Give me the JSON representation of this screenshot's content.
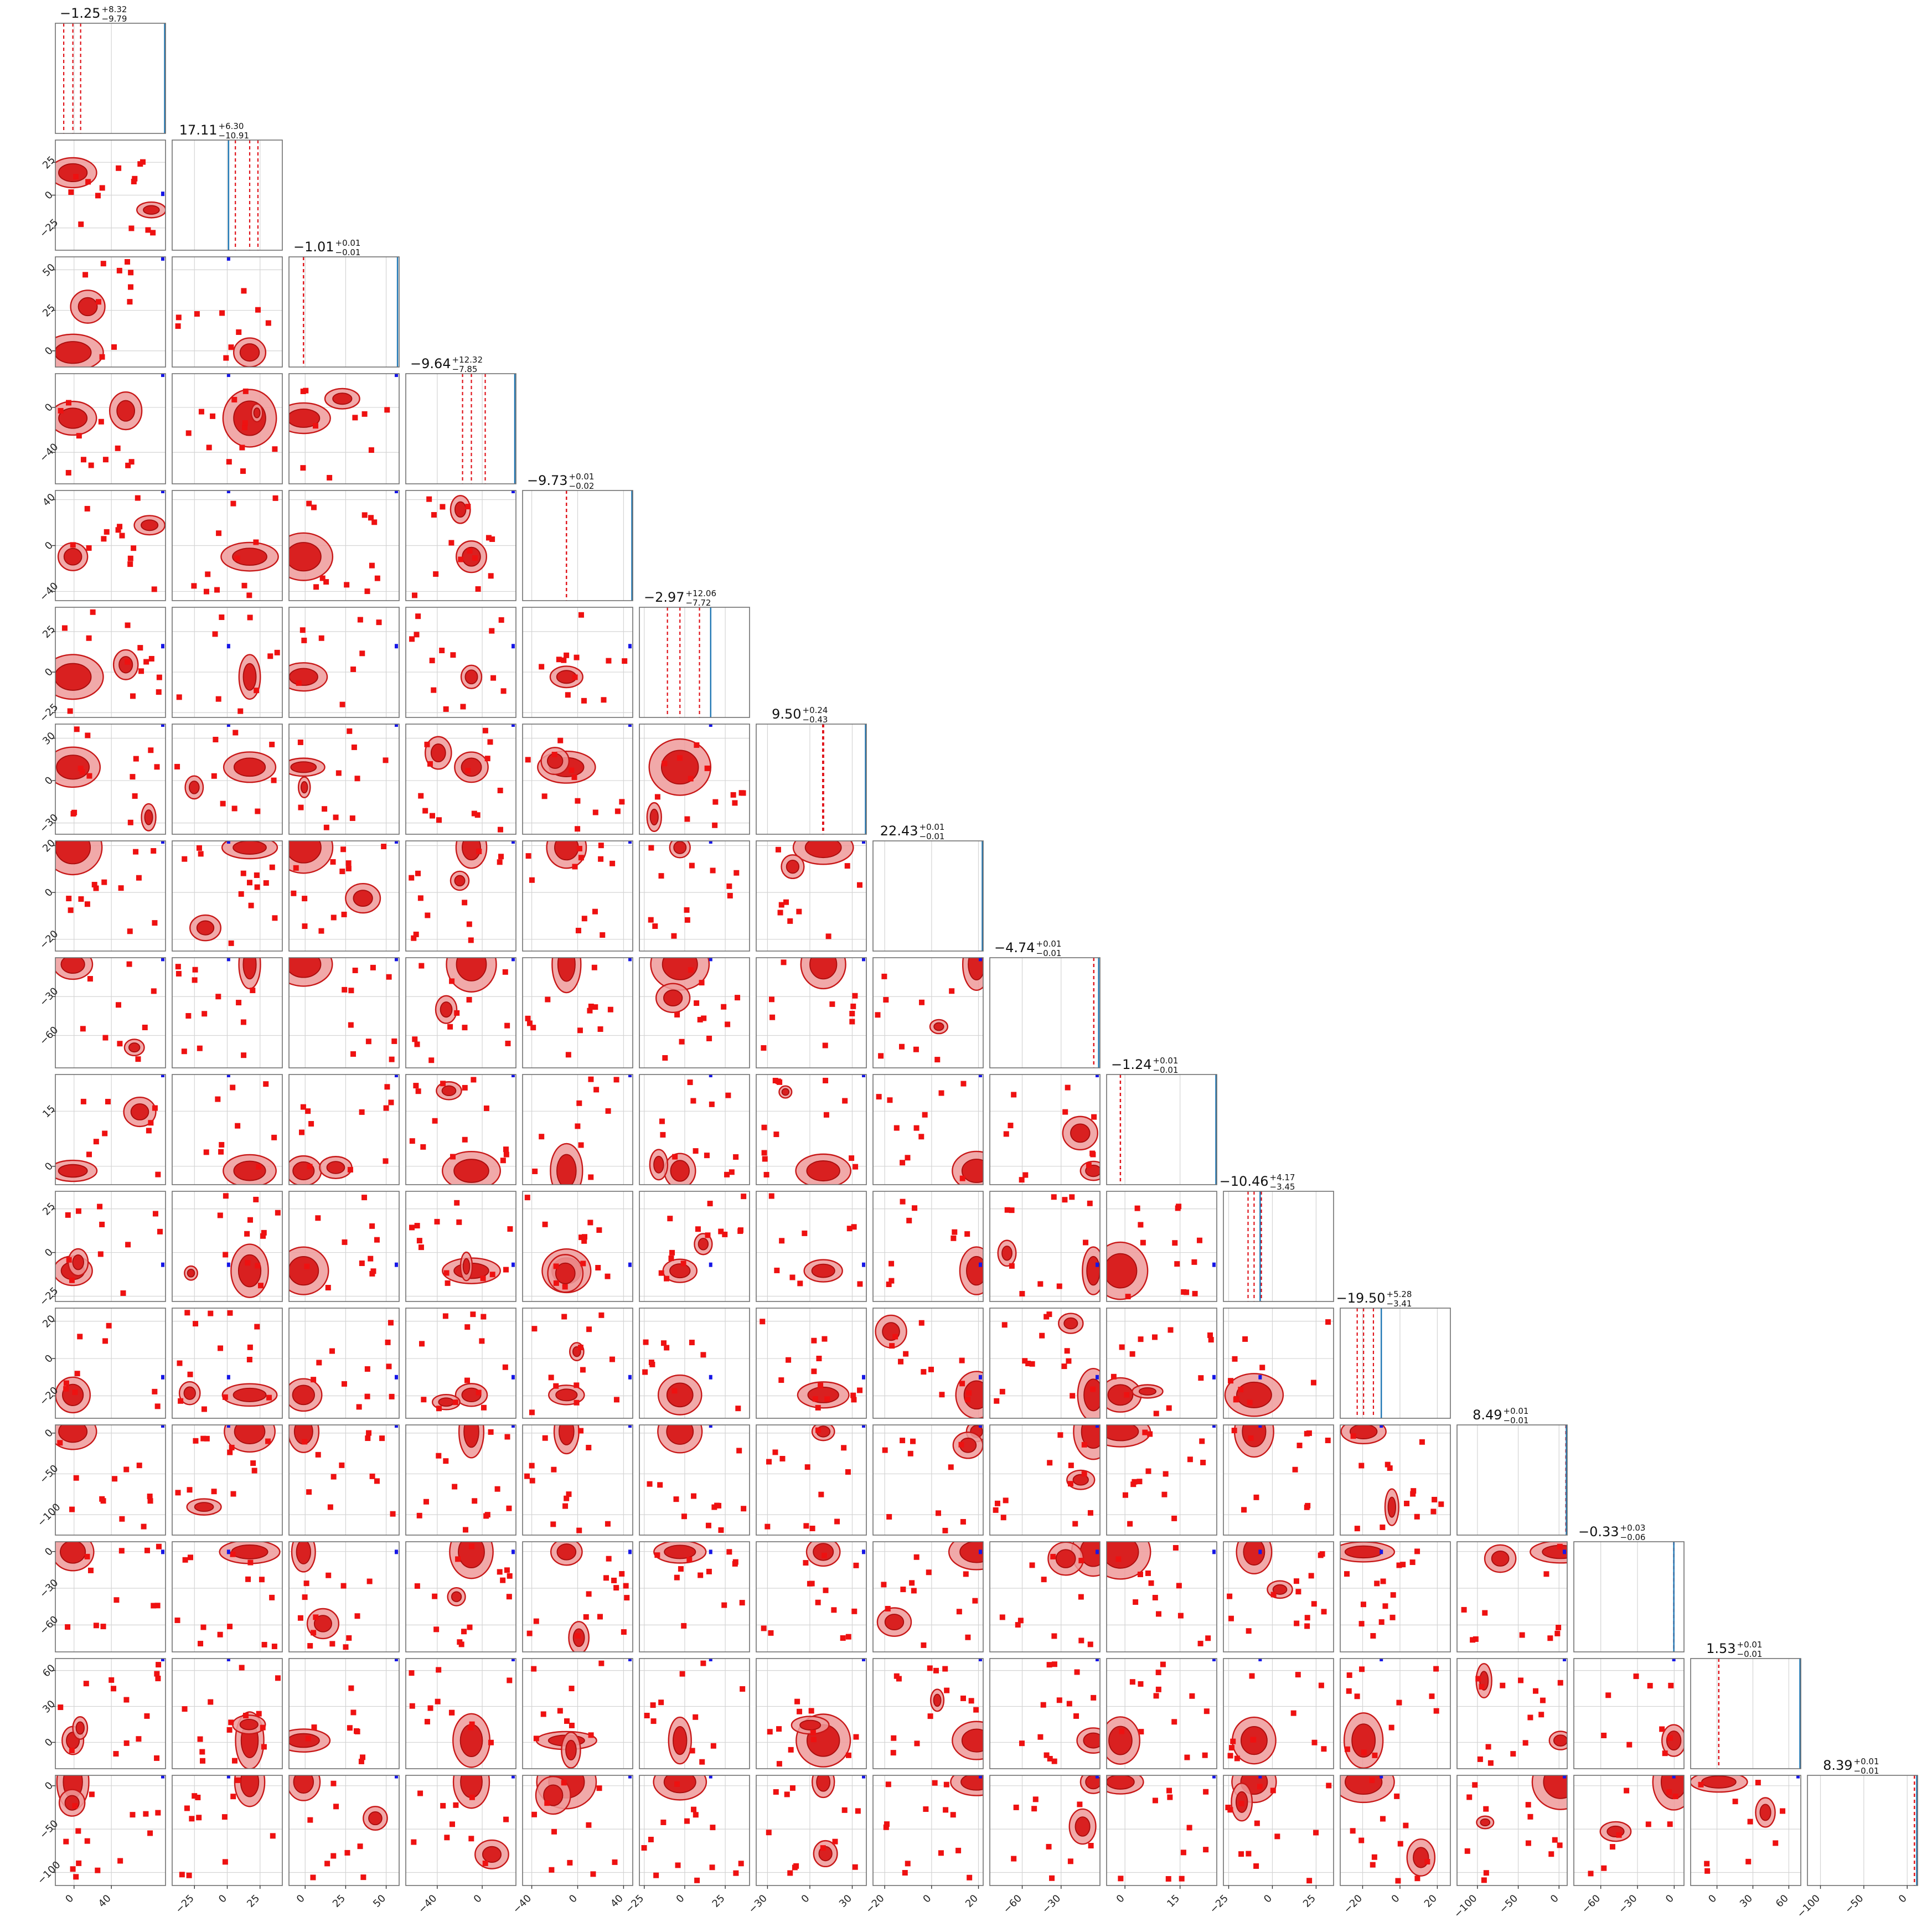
{
  "chart_data": {
    "type": "corner",
    "n_params": 16,
    "colors": {
      "samples": "#ee1111",
      "contour_fill": "#ef9a9a",
      "contour_core": "#d92020",
      "quantile": "#e0141b",
      "truth_line": "#1f77b4",
      "truth_point": "#1717e6"
    },
    "grid": true,
    "params": [
      {
        "index": 0,
        "range": [
          -20,
          98
        ],
        "ticks": [
          0,
          40
        ],
        "tick_labels": [
          "0",
          "40"
        ],
        "median": -1.25,
        "title": {
          "value": "−1.25",
          "plus": "+8.32",
          "minus": "−9.79"
        }
      },
      {
        "index": 1,
        "range": [
          -42,
          42
        ],
        "ticks": [
          -25,
          0,
          25
        ],
        "tick_labels": [
          "−25",
          "0",
          "25"
        ],
        "median": 17.11,
        "title": {
          "value": "17.11",
          "plus": "+6.30",
          "minus": "−10.91"
        }
      },
      {
        "index": 2,
        "range": [
          -10,
          58
        ],
        "ticks": [
          0,
          25,
          50
        ],
        "tick_labels": [
          "0",
          "25",
          "50"
        ],
        "median": -1.01,
        "title": {
          "value": "−1.01",
          "plus": "+0.01",
          "minus": "−0.01"
        }
      },
      {
        "index": 3,
        "range": [
          -68,
          30
        ],
        "ticks": [
          -40,
          0
        ],
        "tick_labels": [
          "−40",
          "0"
        ],
        "median": -9.64,
        "title": {
          "value": "−9.64",
          "plus": "+12.32",
          "minus": "−7.85"
        }
      },
      {
        "index": 4,
        "range": [
          -48,
          48
        ],
        "ticks": [
          -40,
          0,
          40
        ],
        "tick_labels": [
          "−40",
          "0",
          "40"
        ],
        "median": -9.73,
        "title": {
          "value": "−9.73",
          "plus": "+0.01",
          "minus": "−0.02"
        }
      },
      {
        "index": 5,
        "range": [
          -28,
          40
        ],
        "ticks": [
          -25,
          0,
          25
        ],
        "tick_labels": [
          "−25",
          "0",
          "25"
        ],
        "median": -2.97,
        "title": {
          "value": "−2.97",
          "plus": "+12.06",
          "minus": "−7.72"
        }
      },
      {
        "index": 6,
        "range": [
          -38,
          40
        ],
        "ticks": [
          -30,
          0,
          30
        ],
        "tick_labels": [
          "−30",
          "0",
          "30"
        ],
        "median": 9.5,
        "title": {
          "value": "9.50",
          "plus": "+0.24",
          "minus": "−0.43"
        }
      },
      {
        "index": 7,
        "range": [
          -25,
          22
        ],
        "ticks": [
          -20,
          0,
          20
        ],
        "tick_labels": [
          "−20",
          "0",
          "20"
        ],
        "median": 22.43,
        "title": {
          "value": "22.43",
          "plus": "+0.01",
          "minus": "−0.01"
        }
      },
      {
        "index": 8,
        "range": [
          -85,
          0
        ],
        "ticks": [
          -60,
          -30
        ],
        "tick_labels": [
          "−60",
          "−30"
        ],
        "median": -4.74,
        "title": {
          "value": "−4.74",
          "plus": "+0.01",
          "minus": "−0.01"
        }
      },
      {
        "index": 9,
        "range": [
          -5,
          25
        ],
        "ticks": [
          0,
          15
        ],
        "tick_labels": [
          "0",
          "15"
        ],
        "median": -1.24,
        "title": {
          "value": "−1.24",
          "plus": "+0.01",
          "minus": "−0.01"
        }
      },
      {
        "index": 10,
        "range": [
          -28,
          35
        ],
        "ticks": [
          -25,
          0,
          25
        ],
        "tick_labels": [
          "−25",
          "0",
          "25"
        ],
        "median": -10.46,
        "title": {
          "value": "−10.46",
          "plus": "+4.17",
          "minus": "−3.45"
        }
      },
      {
        "index": 11,
        "range": [
          -32,
          27
        ],
        "ticks": [
          -20,
          0,
          20
        ],
        "tick_labels": [
          "−20",
          "0",
          "20"
        ],
        "median": -19.5,
        "title": {
          "value": "−19.50",
          "plus": "+5.28",
          "minus": "−3.41"
        }
      },
      {
        "index": 12,
        "range": [
          -125,
          10
        ],
        "ticks": [
          -100,
          -50,
          0
        ],
        "tick_labels": [
          "−100",
          "−50",
          "0"
        ],
        "median": 8.49,
        "title": {
          "value": "8.49",
          "plus": "+0.01",
          "minus": "−0.01"
        }
      },
      {
        "index": 13,
        "range": [
          -82,
          8
        ],
        "ticks": [
          -60,
          -30,
          0
        ],
        "tick_labels": [
          "−60",
          "−30",
          "0"
        ],
        "median": -0.33,
        "title": {
          "value": "−0.33",
          "plus": "+0.03",
          "minus": "−0.06"
        }
      },
      {
        "index": 14,
        "range": [
          -22,
          70
        ],
        "ticks": [
          0,
          30,
          60
        ],
        "tick_labels": [
          "0",
          "30",
          "60"
        ],
        "median": 1.53,
        "title": {
          "value": "1.53",
          "plus": "+0.01",
          "minus": "−0.01"
        }
      },
      {
        "index": 15,
        "range": [
          -115,
          12
        ],
        "ticks": [
          -100,
          -50,
          0
        ],
        "tick_labels": [
          "−100",
          "−50",
          "0"
        ],
        "median": 8.39,
        "title": {
          "value": "8.39",
          "plus": "+0.01",
          "minus": "−0.01"
        }
      }
    ],
    "diag_quantiles": [
      {
        "lines": [
          -11.04,
          -1.25,
          7.07
        ],
        "truth": 98
      },
      {
        "lines": [
          6.2,
          17.11,
          23.41
        ],
        "truth": 1
      },
      {
        "lines": [
          -1.02,
          -1.01,
          -1.0
        ],
        "truth": 57
      },
      {
        "lines": [
          -17.49,
          -9.64,
          2.68
        ],
        "truth": 29
      },
      {
        "lines": [
          -9.75,
          -9.73,
          -9.72
        ],
        "truth": 48
      },
      {
        "lines": [
          -10.69,
          -2.97,
          9.09
        ],
        "truth": 16
      },
      {
        "lines": [
          9.07,
          9.5,
          9.74
        ],
        "truth": 40
      },
      {
        "lines": [
          22.42,
          22.43,
          22.44
        ],
        "truth": 22
      },
      {
        "lines": [
          -4.75,
          -4.74,
          -4.73
        ],
        "truth": -1
      },
      {
        "lines": [
          -1.25,
          -1.24,
          -1.23
        ],
        "truth": 25
      },
      {
        "lines": [
          -13.91,
          -10.46,
          -6.29
        ],
        "truth": -7
      },
      {
        "lines": [
          -22.91,
          -19.5,
          -14.22
        ],
        "truth": -10
      },
      {
        "lines": [
          8.48,
          8.49,
          8.5
        ],
        "truth": 10
      },
      {
        "lines": [
          -0.39,
          -0.33,
          -0.3
        ],
        "truth": -0.3
      },
      {
        "lines": [
          1.52,
          1.53,
          1.54
        ],
        "truth": 70
      },
      {
        "lines": [
          8.38,
          8.39,
          8.4
        ],
        "truth": 11
      }
    ],
    "truths": [
      98,
      1,
      57,
      29,
      48,
      16,
      40,
      22,
      -1,
      25,
      -7,
      -10,
      10,
      -0.3,
      70,
      11
    ]
  }
}
